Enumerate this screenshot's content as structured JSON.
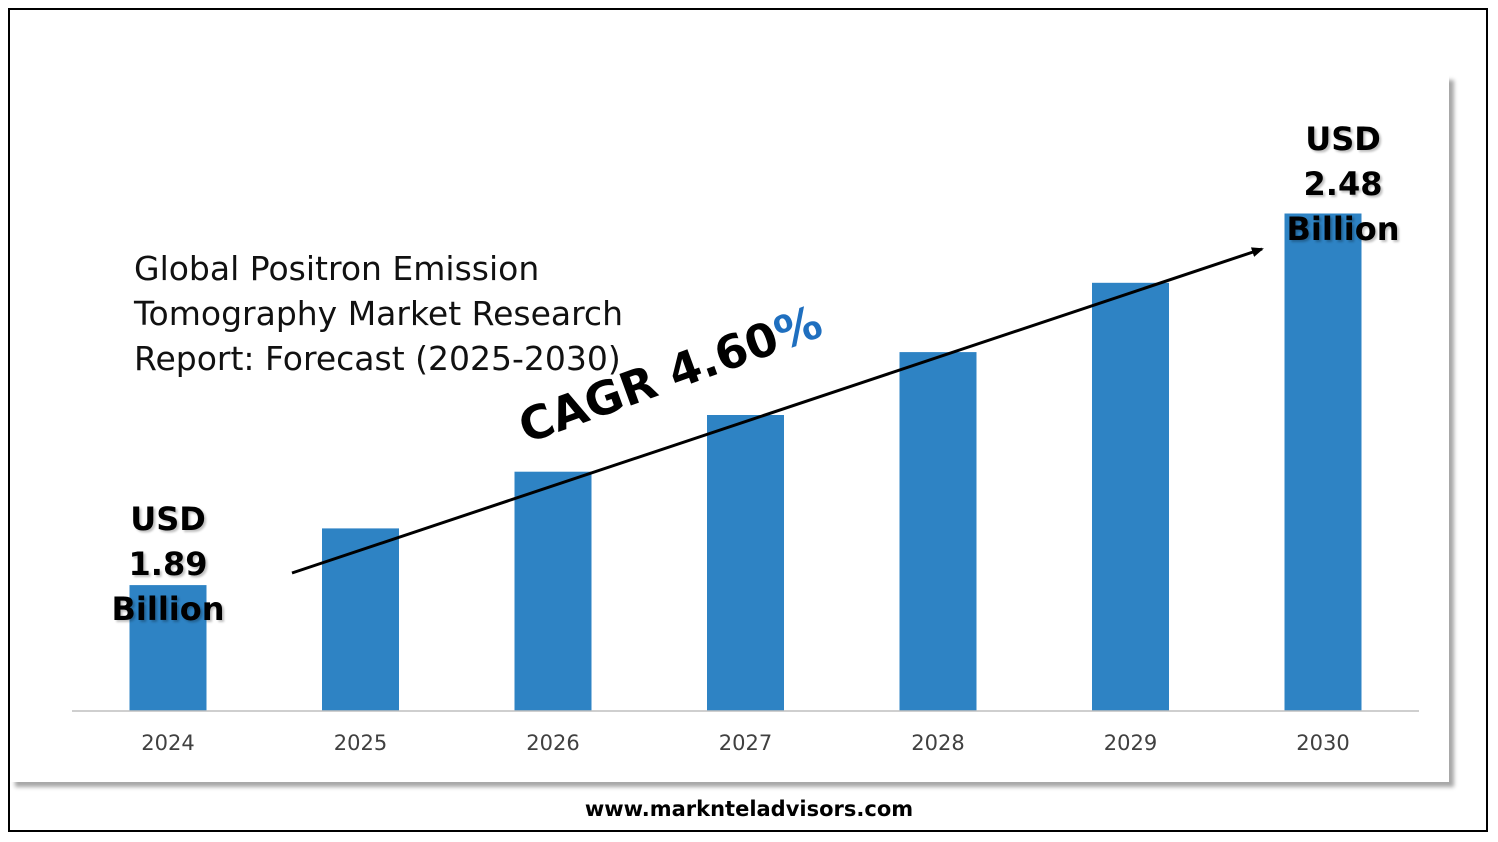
{
  "title_lines": [
    "Global Positron Emission",
    "Tomography Market Research",
    "Report: Forecast (2025-2030)"
  ],
  "cagr": {
    "prefix": "CAGR 4.60",
    "suffix": "%"
  },
  "start_label": [
    "USD",
    "1.89",
    "Billion"
  ],
  "end_label": [
    "USD",
    "2.48",
    "Billion"
  ],
  "footer": "www.marknteladvisors.com",
  "colors": {
    "bar": "#2e83c4",
    "cagr_percent": "#1f6fbf",
    "axis": "#bfbfbf",
    "tick_label": "#404040"
  },
  "chart_data": {
    "type": "bar",
    "categories": [
      "2024",
      "2025",
      "2026",
      "2027",
      "2028",
      "2029",
      "2030"
    ],
    "values": [
      1.89,
      1.98,
      2.07,
      2.16,
      2.26,
      2.37,
      2.48
    ],
    "unit": "USD Billion",
    "ylim": [
      1.69,
      2.7
    ],
    "grid": false,
    "legend": "none",
    "annotation": "CAGR 4.60%"
  }
}
